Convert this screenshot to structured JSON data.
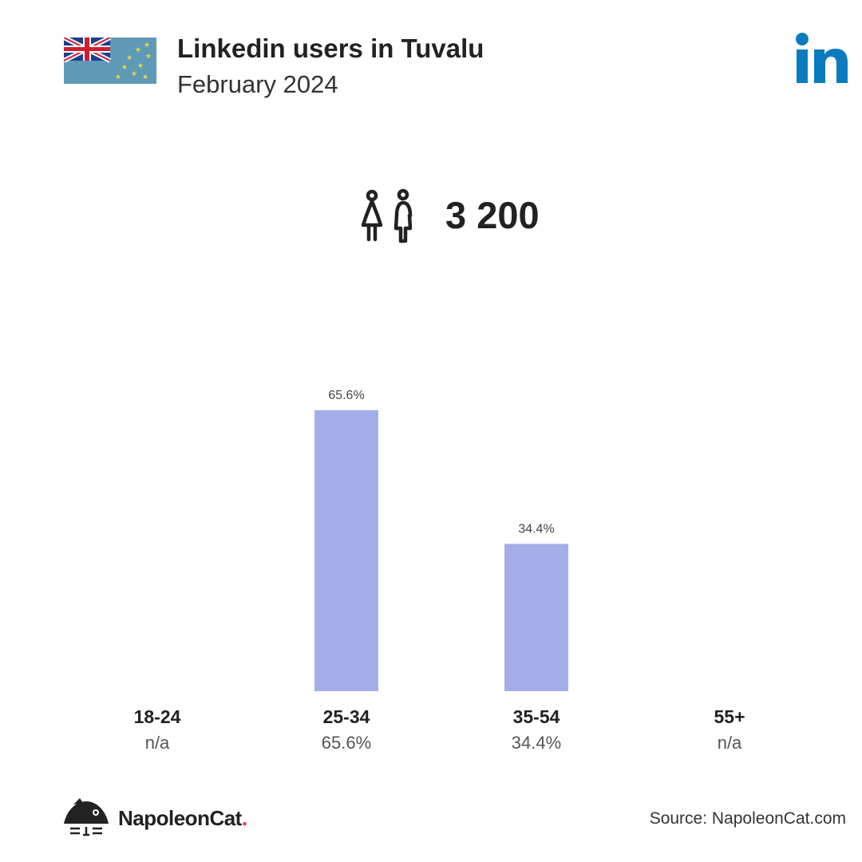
{
  "header": {
    "title": "Linkedin users in Tuvalu",
    "subtitle": "February 2024"
  },
  "summary": {
    "total_users": "3 200",
    "icon": "people-icon"
  },
  "colors": {
    "bar": "#a3aee8",
    "linkedin_blue": "#0a7bbf",
    "flag_blue": "#5e9ab8",
    "star_yellow": "#f2d43a"
  },
  "chart_data": {
    "type": "bar",
    "categories": [
      "18-24",
      "25-34",
      "35-54",
      "55+"
    ],
    "values": [
      null,
      65.6,
      34.4,
      null
    ],
    "value_labels": [
      "",
      "65.6%",
      "34.4%",
      ""
    ],
    "category_values": [
      "n/a",
      "65.6%",
      "34.4%",
      "n/a"
    ],
    "unit": "%",
    "title": "Linkedin users in Tuvalu",
    "xlabel": "",
    "ylabel": "",
    "ylim": [
      0,
      65.6
    ],
    "grid": false
  },
  "footer": {
    "brand_name": "NapoleonCat",
    "brand_dot": ".",
    "source": "Source: NapoleonCat.com"
  }
}
